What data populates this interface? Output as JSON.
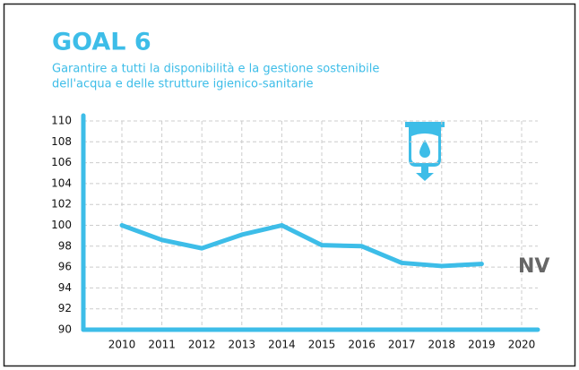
{
  "chart_data": {
    "type": "line",
    "title": "GOAL 6",
    "subtitle": [
      "Garantire a tutti la disponibilità e la gestione sostenibile",
      "dell'acqua e delle strutture igienico-sanitarie"
    ],
    "categories": [
      "2010",
      "2011",
      "2012",
      "2013",
      "2014",
      "2015",
      "2016",
      "2017",
      "2018",
      "2019",
      "2020"
    ],
    "series": [
      {
        "name": null,
        "color": "#3dbde8",
        "values": [
          100,
          98.6,
          97.8,
          99.1,
          100,
          98.1,
          98,
          96.4,
          96.1,
          96.3,
          null
        ]
      }
    ],
    "ylim": [
      90,
      110
    ],
    "yticks": [
      90,
      92,
      94,
      96,
      98,
      100,
      102,
      104,
      106,
      108,
      110
    ],
    "grid": true,
    "annotation": "NV"
  }
}
